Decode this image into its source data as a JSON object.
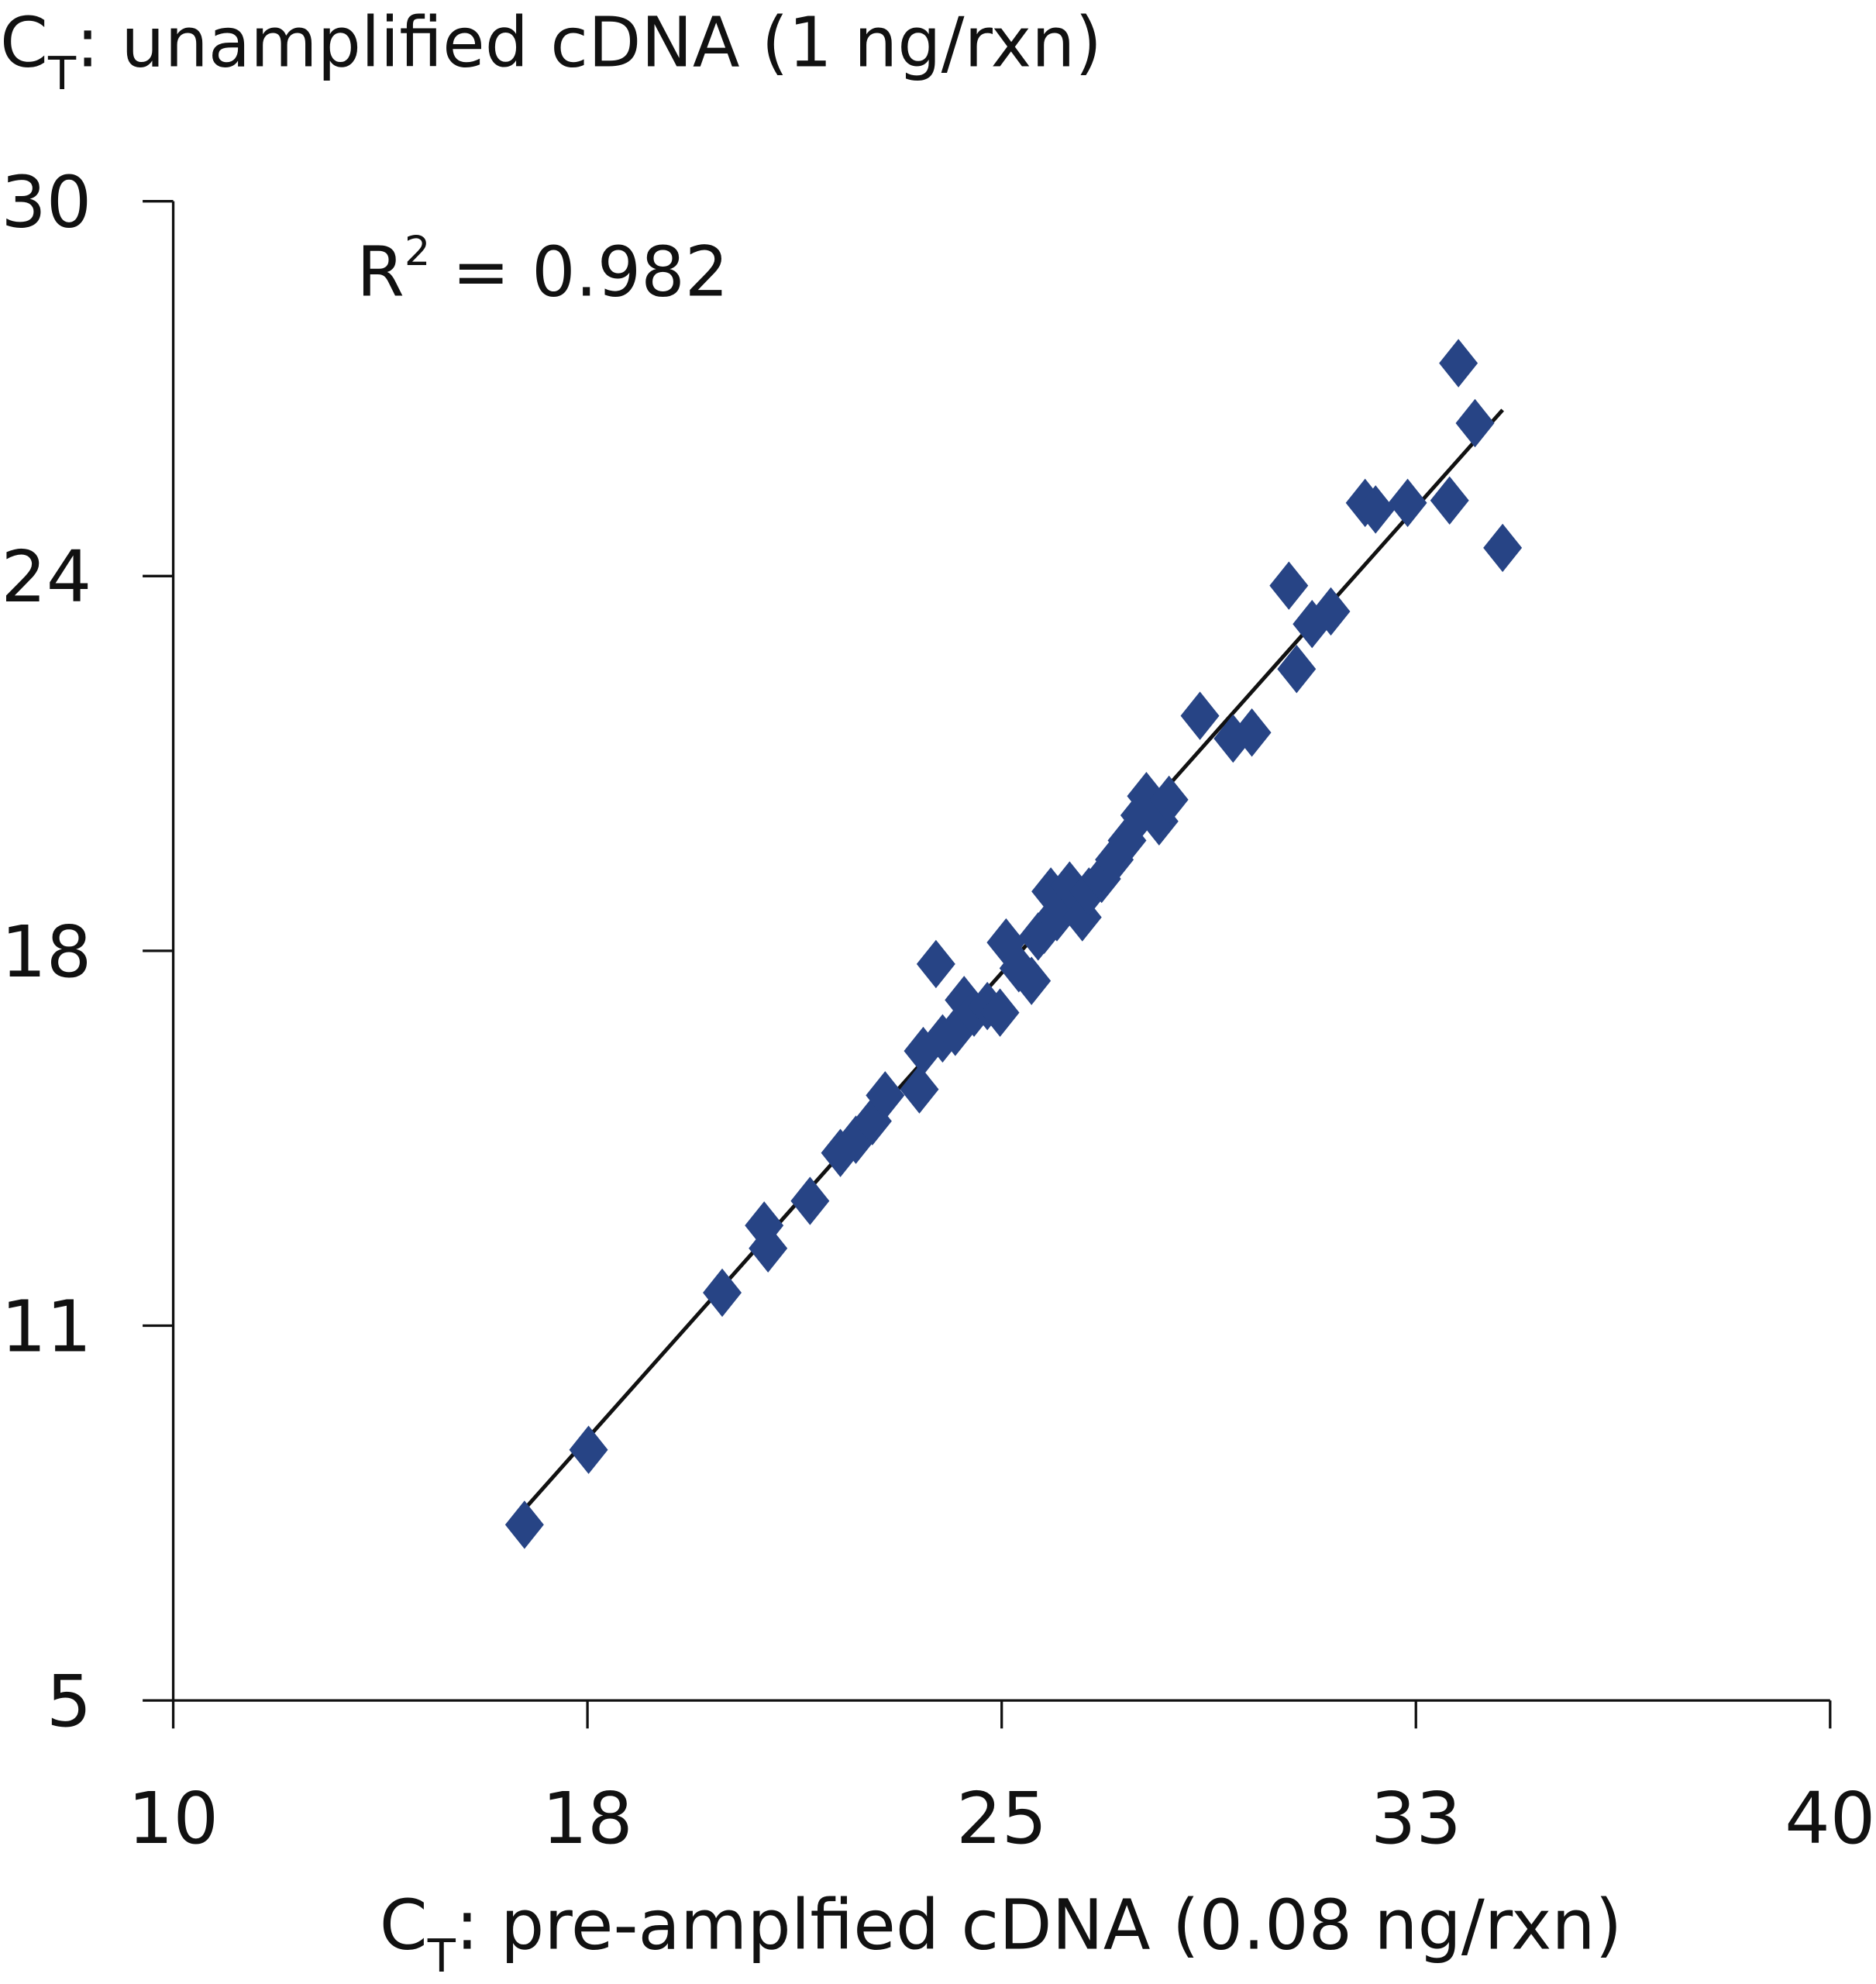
{
  "chart_data": {
    "type": "scatter",
    "title": "",
    "ylabel": {
      "main": "C",
      "sub": "T",
      "rest": ": unamplified cDNA (1 ng/rxn)"
    },
    "xlabel": {
      "main": "C",
      "sub": "T",
      "rest": ": pre-amplfied cDNA (0.08 ng/rxn)"
    },
    "xlim": [
      10,
      40
    ],
    "ylim": [
      5,
      30
    ],
    "x_ticks": [
      10,
      17.5,
      25,
      32.5,
      40
    ],
    "x_tick_labels": [
      "10",
      "18",
      "25",
      "33",
      "40"
    ],
    "y_ticks": [
      5,
      11.25,
      17.5,
      23.75,
      30
    ],
    "y_tick_labels": [
      "5",
      "11",
      "18",
      "24",
      "30"
    ],
    "annotation": {
      "text": "R",
      "sup": "2",
      "rest": " = 0.982"
    },
    "grid": false,
    "marker_color": "#274485",
    "trendline": {
      "x": [
        16.36,
        34.07
      ],
      "y": [
        8.19,
        26.52
      ]
    },
    "points": [
      [
        16.36,
        7.93
      ],
      [
        17.52,
        9.18
      ],
      [
        19.94,
        11.8
      ],
      [
        20.7,
        12.92
      ],
      [
        20.77,
        12.54
      ],
      [
        21.53,
        13.33
      ],
      [
        22.08,
        14.13
      ],
      [
        22.36,
        14.35
      ],
      [
        22.66,
        14.66
      ],
      [
        22.89,
        15.09
      ],
      [
        23.51,
        15.19
      ],
      [
        23.58,
        15.83
      ],
      [
        23.81,
        17.28
      ],
      [
        23.93,
        16.04
      ],
      [
        24.16,
        16.15
      ],
      [
        24.32,
        16.68
      ],
      [
        24.5,
        16.47
      ],
      [
        24.74,
        16.58
      ],
      [
        24.97,
        16.47
      ],
      [
        25.08,
        17.64
      ],
      [
        25.31,
        17.21
      ],
      [
        25.54,
        17.0
      ],
      [
        25.66,
        17.74
      ],
      [
        25.77,
        17.85
      ],
      [
        25.89,
        18.49
      ],
      [
        26.0,
        18.06
      ],
      [
        26.23,
        18.59
      ],
      [
        26.46,
        18.06
      ],
      [
        26.58,
        18.49
      ],
      [
        26.81,
        18.7
      ],
      [
        27.04,
        19.02
      ],
      [
        27.27,
        19.34
      ],
      [
        27.5,
        19.76
      ],
      [
        27.62,
        20.08
      ],
      [
        27.85,
        19.66
      ],
      [
        28.03,
        20.02
      ],
      [
        28.59,
        21.42
      ],
      [
        29.19,
        21.04
      ],
      [
        29.53,
        21.14
      ],
      [
        30.2,
        23.59
      ],
      [
        30.34,
        22.2
      ],
      [
        30.62,
        22.95
      ],
      [
        30.96,
        23.16
      ],
      [
        31.58,
        24.97
      ],
      [
        31.77,
        24.86
      ],
      [
        32.35,
        24.97
      ],
      [
        33.11,
        25.01
      ],
      [
        33.27,
        27.3
      ],
      [
        33.57,
        26.3
      ],
      [
        34.07,
        24.22
      ]
    ]
  }
}
